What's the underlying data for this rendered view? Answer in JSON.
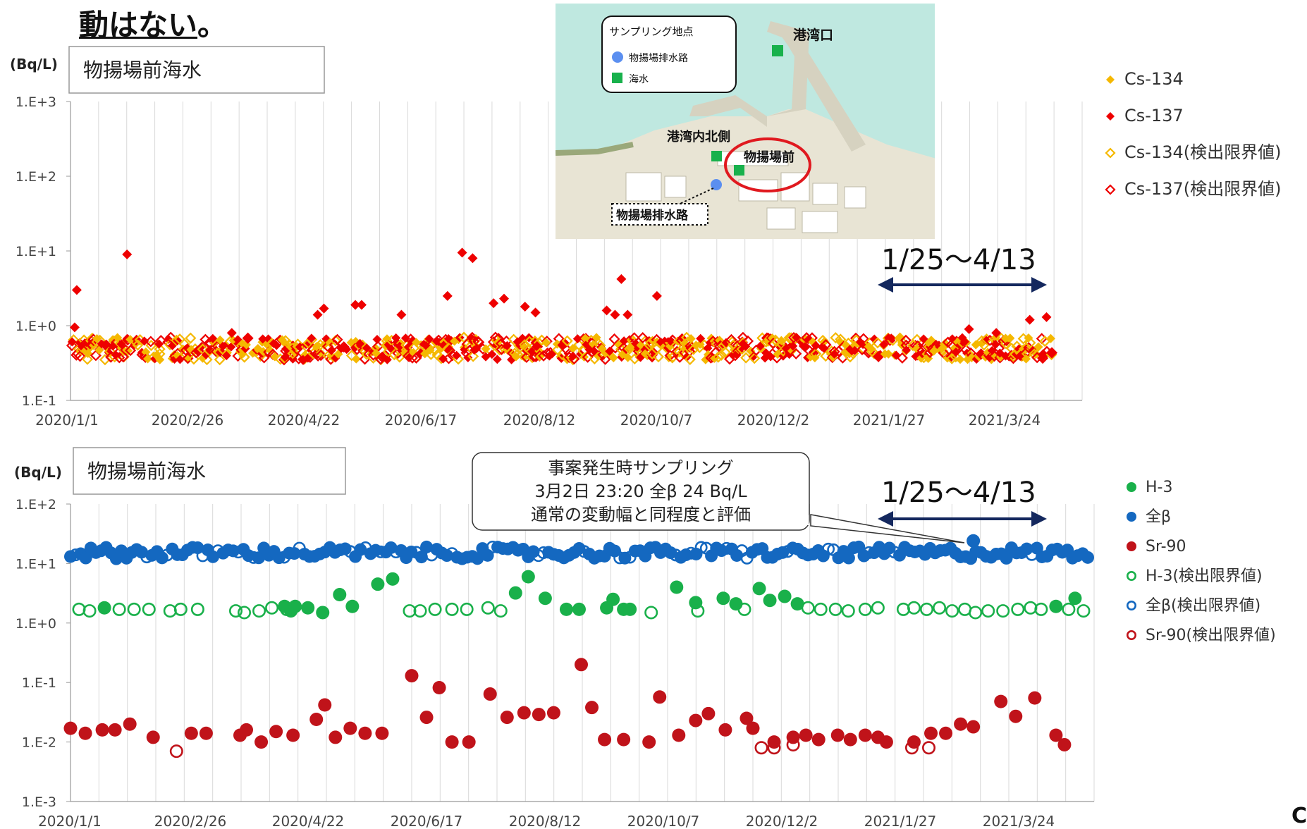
{
  "page": {
    "title_bold": "動はない",
    "title_punct": "。",
    "corner_fragment": "C"
  },
  "map": {
    "legend_title": "サンプリング地点",
    "legend_items": [
      "物揚場排水路",
      "海水"
    ],
    "labels": {
      "harbor_mouth": "港湾口",
      "harbor_north": "港湾内北側",
      "wharf_front": "物揚場前",
      "drain_channel": "物揚場排水路"
    },
    "colors": {
      "sea": "#bfe8e0",
      "land": "#e8e4d4",
      "seawater_marker": "#18b14c",
      "drain_marker": "#5b8ff0",
      "highlight": "#e0191f"
    }
  },
  "chart_data": [
    {
      "type": "scatter",
      "title": "物揚場前海水",
      "ylabel": "(Bq/L)",
      "yscale": "log",
      "ylim": [
        0.1,
        1000
      ],
      "y_ticks": [
        "1.E-1",
        "1.E+0",
        "1.E+1",
        "1.E+2",
        "1.E+3"
      ],
      "x_ticks": [
        "2020/1/1",
        "2020/2/26",
        "2020/4/22",
        "2020/6/17",
        "2020/8/12",
        "2020/10/7",
        "2020/12/2",
        "2021/1/27",
        "2021/3/24"
      ],
      "grid": "vertical",
      "legend_position": "right",
      "annotation_range": "1/25〜4/13",
      "series": [
        {
          "name": "Cs-134",
          "marker": "diamond-filled",
          "color": "#f5b800",
          "points": []
        },
        {
          "name": "Cs-137",
          "marker": "diamond-filled",
          "color": "#ee0000",
          "points": [
            [
              "2020/1/4",
              3.0
            ],
            [
              "2020/1/3",
              0.95
            ],
            [
              "2020/1/28",
              9.0
            ],
            [
              "2020/3/18",
              0.8
            ],
            [
              "2020/4/28",
              1.4
            ],
            [
              "2020/5/1",
              1.7
            ],
            [
              "2020/5/16",
              1.9
            ],
            [
              "2020/5/19",
              1.9
            ],
            [
              "2020/6/7",
              1.4
            ],
            [
              "2020/6/29",
              2.5
            ],
            [
              "2020/7/6",
              9.5
            ],
            [
              "2020/7/11",
              8.0
            ],
            [
              "2020/7/21",
              2.0
            ],
            [
              "2020/7/26",
              2.3
            ],
            [
              "2020/8/5",
              1.8
            ],
            [
              "2020/8/10",
              1.5
            ],
            [
              "2020/9/13",
              1.6
            ],
            [
              "2020/9/17",
              1.4
            ],
            [
              "2020/9/20",
              4.2
            ],
            [
              "2020/9/23",
              1.4
            ],
            [
              "2020/10/7",
              2.5
            ],
            [
              "2021/3/5",
              0.9
            ],
            [
              "2021/3/18",
              0.8
            ],
            [
              "2021/4/3",
              1.2
            ],
            [
              "2021/4/11",
              1.3
            ]
          ]
        },
        {
          "name": "Cs-134(検出限界値)",
          "marker": "diamond-open",
          "color": "#f5b800",
          "points": []
        },
        {
          "name": "Cs-137(検出限界値)",
          "marker": "diamond-open",
          "color": "#ee0000",
          "points": []
        }
      ],
      "dense_band": {
        "min": 0.35,
        "max": 0.7,
        "x_start": "2020/1/1",
        "x_end": "2021/4/13"
      }
    },
    {
      "type": "scatter",
      "title": "物揚場前海水",
      "ylabel": "(Bq/L)",
      "yscale": "log",
      "ylim": [
        0.001,
        100
      ],
      "y_ticks": [
        "1.E-3",
        "1.E-2",
        "1.E-1",
        "1.E+0",
        "1.E+1",
        "1.E+2"
      ],
      "x_ticks": [
        "2020/1/1",
        "2020/2/26",
        "2020/4/22",
        "2020/6/17",
        "2020/8/12",
        "2020/10/7",
        "2020/12/2",
        "2021/1/27",
        "2021/3/24"
      ],
      "grid": "vertical",
      "legend_position": "right",
      "annotation_range": "1/25〜4/13",
      "callout": [
        "事案発生時サンプリング",
        "3月2日 23:20 全β 24 Bq/L",
        "通常の変動幅と同程度と評価"
      ],
      "series": [
        {
          "name": "H-3",
          "marker": "circle-filled",
          "color": "#19b04a",
          "points": [
            [
              "2020/1/17",
              1.8
            ],
            [
              "2020/4/11",
              1.9
            ],
            [
              "2020/4/14",
              1.6
            ],
            [
              "2020/4/16",
              1.9
            ],
            [
              "2020/4/22",
              1.8
            ],
            [
              "2020/4/29",
              1.5
            ],
            [
              "2020/5/7",
              3.0
            ],
            [
              "2020/5/13",
              1.9
            ],
            [
              "2020/5/25",
              4.5
            ],
            [
              "2020/6/1",
              5.5
            ],
            [
              "2020/7/29",
              3.2
            ],
            [
              "2020/8/4",
              6.0
            ],
            [
              "2020/8/12",
              2.6
            ],
            [
              "2020/8/22",
              1.7
            ],
            [
              "2020/8/28",
              1.7
            ],
            [
              "2020/9/10",
              1.8
            ],
            [
              "2020/9/13",
              2.5
            ],
            [
              "2020/9/18",
              1.7
            ],
            [
              "2020/9/21",
              1.7
            ],
            [
              "2020/10/13",
              4.0
            ],
            [
              "2020/10/22",
              2.2
            ],
            [
              "2020/11/4",
              2.6
            ],
            [
              "2020/11/10",
              2.1
            ],
            [
              "2020/11/21",
              3.8
            ],
            [
              "2020/11/26",
              2.4
            ],
            [
              "2020/12/3",
              2.8
            ],
            [
              "2020/12/9",
              2.1
            ],
            [
              "2021/4/10",
              1.9
            ],
            [
              "2021/4/19",
              2.6
            ]
          ]
        },
        {
          "name": "全β",
          "marker": "circle-filled",
          "color": "#1468c0",
          "points": [
            [
              "2021/3/2",
              24
            ]
          ]
        },
        {
          "name": "Sr-90",
          "marker": "circle-filled",
          "color": "#c0131a",
          "points": [
            [
              "2020/1/1",
              0.017
            ],
            [
              "2020/1/8",
              0.014
            ],
            [
              "2020/1/16",
              0.016
            ],
            [
              "2020/1/22",
              0.016
            ],
            [
              "2020/1/29",
              0.02
            ],
            [
              "2020/2/9",
              0.012
            ],
            [
              "2020/2/27",
              0.014
            ],
            [
              "2020/3/5",
              0.014
            ],
            [
              "2020/3/21",
              0.013
            ],
            [
              "2020/3/24",
              0.016
            ],
            [
              "2020/3/31",
              0.01
            ],
            [
              "2020/4/7",
              0.015
            ],
            [
              "2020/4/15",
              0.013
            ],
            [
              "2020/4/26",
              0.024
            ],
            [
              "2020/4/30",
              0.042
            ],
            [
              "2020/5/5",
              0.012
            ],
            [
              "2020/5/12",
              0.017
            ],
            [
              "2020/5/19",
              0.014
            ],
            [
              "2020/5/27",
              0.014
            ],
            [
              "2020/6/10",
              0.13
            ],
            [
              "2020/6/17",
              0.026
            ],
            [
              "2020/6/23",
              0.082
            ],
            [
              "2020/6/29",
              0.01
            ],
            [
              "2020/7/7",
              0.01
            ],
            [
              "2020/7/17",
              0.064
            ],
            [
              "2020/7/25",
              0.026
            ],
            [
              "2020/8/2",
              0.031
            ],
            [
              "2020/8/9",
              0.029
            ],
            [
              "2020/8/16",
              0.031
            ],
            [
              "2020/8/29",
              0.2
            ],
            [
              "2020/9/3",
              0.038
            ],
            [
              "2020/9/9",
              0.011
            ],
            [
              "2020/9/18",
              0.011
            ],
            [
              "2020/9/30",
              0.01
            ],
            [
              "2020/10/5",
              0.057
            ],
            [
              "2020/10/14",
              0.013
            ],
            [
              "2020/10/22",
              0.023
            ],
            [
              "2020/10/28",
              0.03
            ],
            [
              "2020/11/5",
              0.016
            ],
            [
              "2020/11/15",
              0.025
            ],
            [
              "2020/11/18",
              0.017
            ],
            [
              "2020/11/28",
              0.01
            ],
            [
              "2020/12/7",
              0.012
            ],
            [
              "2020/12/13",
              0.013
            ],
            [
              "2020/12/19",
              0.011
            ],
            [
              "2020/12/28",
              0.013
            ],
            [
              "2021/1/3",
              0.011
            ],
            [
              "2021/1/10",
              0.013
            ],
            [
              "2021/1/16",
              0.012
            ],
            [
              "2021/1/20",
              0.01
            ],
            [
              "2021/2/2",
              0.01
            ],
            [
              "2021/2/10",
              0.014
            ],
            [
              "2021/2/17",
              0.014
            ],
            [
              "2021/2/24",
              0.02
            ],
            [
              "2021/3/2",
              0.018
            ],
            [
              "2021/3/15",
              0.048
            ],
            [
              "2021/3/22",
              0.027
            ],
            [
              "2021/3/31",
              0.055
            ],
            [
              "2021/4/10",
              0.013
            ],
            [
              "2021/4/14",
              0.009
            ]
          ]
        },
        {
          "name": "H-3(検出限界値)",
          "marker": "circle-open",
          "color": "#19b04a",
          "points": [
            [
              "2020/1/5",
              1.7
            ],
            [
              "2020/1/10",
              1.6
            ],
            [
              "2020/1/24",
              1.7
            ],
            [
              "2020/1/31",
              1.7
            ],
            [
              "2020/2/7",
              1.7
            ],
            [
              "2020/2/17",
              1.6
            ],
            [
              "2020/2/22",
              1.7
            ],
            [
              "2020/3/1",
              1.7
            ],
            [
              "2020/3/19",
              1.6
            ],
            [
              "2020/3/23",
              1.5
            ],
            [
              "2020/3/30",
              1.6
            ],
            [
              "2020/4/5",
              1.8
            ],
            [
              "2020/4/12",
              1.7
            ],
            [
              "2020/6/9",
              1.6
            ],
            [
              "2020/6/14",
              1.6
            ],
            [
              "2020/6/21",
              1.7
            ],
            [
              "2020/6/29",
              1.7
            ],
            [
              "2020/7/6",
              1.7
            ],
            [
              "2020/7/16",
              1.8
            ],
            [
              "2020/7/22",
              1.6
            ],
            [
              "2020/10/1",
              1.5
            ],
            [
              "2020/10/23",
              1.6
            ],
            [
              "2020/11/14",
              1.7
            ],
            [
              "2020/12/14",
              1.8
            ],
            [
              "2020/12/20",
              1.7
            ],
            [
              "2020/12/27",
              1.7
            ],
            [
              "2021/1/2",
              1.6
            ],
            [
              "2021/1/10",
              1.7
            ],
            [
              "2021/1/16",
              1.8
            ],
            [
              "2021/1/28",
              1.7
            ],
            [
              "2021/2/2",
              1.8
            ],
            [
              "2021/2/8",
              1.7
            ],
            [
              "2021/2/14",
              1.8
            ],
            [
              "2021/2/20",
              1.6
            ],
            [
              "2021/2/26",
              1.7
            ],
            [
              "2021/3/3",
              1.5
            ],
            [
              "2021/3/9",
              1.6
            ],
            [
              "2021/3/16",
              1.6
            ],
            [
              "2021/3/23",
              1.7
            ],
            [
              "2021/3/29",
              1.8
            ],
            [
              "2021/4/3",
              1.7
            ],
            [
              "2021/4/16",
              1.7
            ],
            [
              "2021/4/23",
              1.6
            ]
          ]
        },
        {
          "name": "全β(検出限界値)",
          "marker": "circle-open",
          "color": "#1468c0",
          "points": []
        },
        {
          "name": "Sr-90(検出限界値)",
          "marker": "circle-open",
          "color": "#c0131a",
          "points": [
            [
              "2020/2/20",
              0.007
            ],
            [
              "2020/11/22",
              0.008
            ],
            [
              "2020/11/28",
              0.008
            ],
            [
              "2020/12/7",
              0.009
            ],
            [
              "2021/2/1",
              0.008
            ],
            [
              "2021/2/9",
              0.008
            ]
          ]
        }
      ],
      "dense_band": {
        "series": "全β",
        "min": 12,
        "max": 19,
        "x_start": "2020/1/1",
        "x_end": "2021/4/25"
      }
    }
  ]
}
